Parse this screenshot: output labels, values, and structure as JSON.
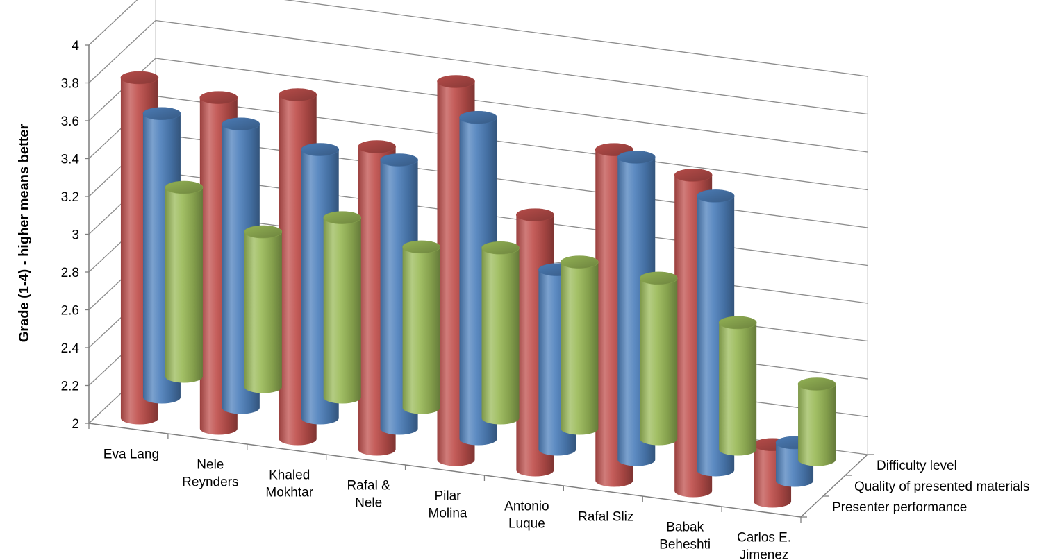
{
  "chart_data": {
    "type": "bar",
    "subtype": "3d-cylinder",
    "title": "",
    "ylabel": "Grade (1-4) - higher means better",
    "xlabel": "",
    "ylim": [
      2,
      4
    ],
    "yticks": [
      "2",
      "2.2",
      "2.4",
      "2.6",
      "2.8",
      "3",
      "3.2",
      "3.4",
      "3.6",
      "3.8",
      "4"
    ],
    "grid": true,
    "categories": [
      [
        "Eva Lang"
      ],
      [
        "Nele",
        "Reynders"
      ],
      [
        "Khaled",
        "Mokhtar"
      ],
      [
        "Rafal &",
        "Nele"
      ],
      [
        "Pilar",
        "Molina"
      ],
      [
        "Antonio",
        "Luque"
      ],
      [
        "Rafal Sliz"
      ],
      [
        "Babak",
        "Beheshti"
      ],
      [
        "Carlos E.",
        "Jimenez"
      ]
    ],
    "series": [
      {
        "name": "Difficulty level",
        "color": "#9BBB59",
        "values": [
          3.0,
          2.82,
          2.95,
          2.85,
          2.9,
          2.88,
          2.85,
          2.67,
          2.4
        ]
      },
      {
        "name": "Quality of presented materials",
        "color": "#4F81BD",
        "values": [
          3.5,
          3.5,
          3.42,
          3.42,
          3.7,
          2.95,
          3.6,
          3.45,
          2.2
        ]
      },
      {
        "name": "Presenter performance",
        "color": "#C0504D",
        "values": [
          3.8,
          3.75,
          3.82,
          3.6,
          4.0,
          3.35,
          3.75,
          3.67,
          2.3
        ]
      }
    ]
  }
}
